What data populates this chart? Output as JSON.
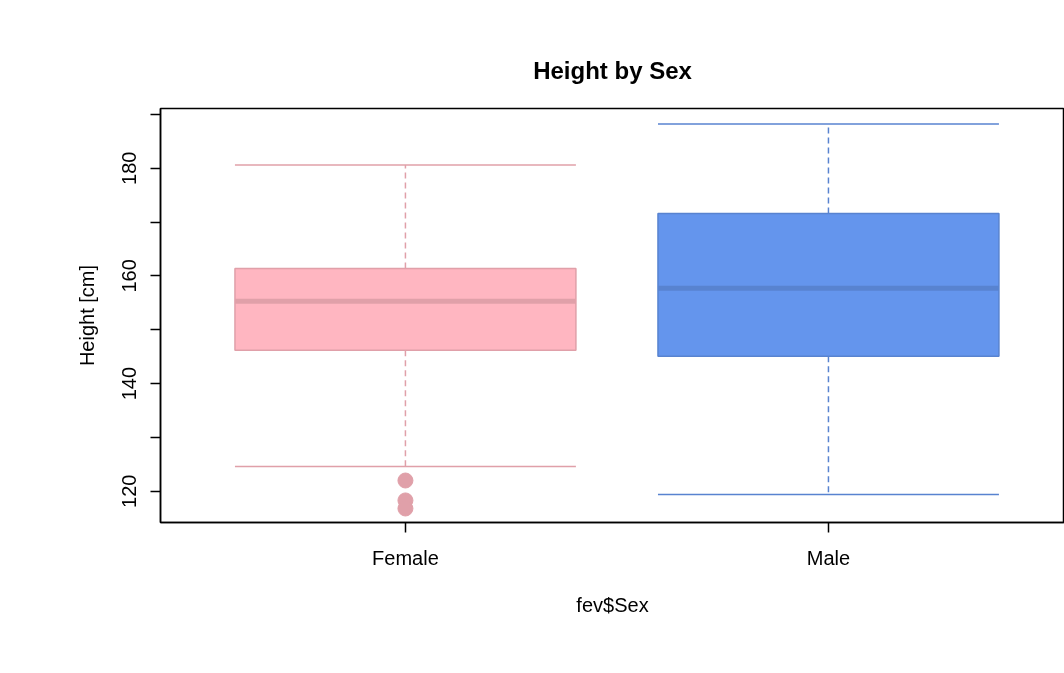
{
  "chart_data": {
    "type": "box",
    "title": "Height by Sex",
    "xlabel": "fev$Sex",
    "ylabel": "Height [cm]",
    "categories": [
      "Female",
      "Male"
    ],
    "colors": [
      "#ffb6c1",
      "#6495ed"
    ],
    "boxes": [
      {
        "low": 124.6,
        "q1": 146.2,
        "median": 155.3,
        "q3": 161.4,
        "high": 180.6,
        "outliers": [
          122.0,
          118.3,
          116.8
        ]
      },
      {
        "low": 119.4,
        "q1": 145.1,
        "median": 157.7,
        "q3": 171.6,
        "high": 188.2
      }
    ],
    "ylim": [
      114.2,
      191.1
    ],
    "yticks": [
      120,
      {
        "value": 130,
        "label": null
      },
      140,
      {
        "value": 150,
        "label": null
      },
      160,
      {
        "value": 170,
        "label": null
      },
      180,
      {
        "value": 190,
        "label": null
      }
    ],
    "grid": false
  }
}
